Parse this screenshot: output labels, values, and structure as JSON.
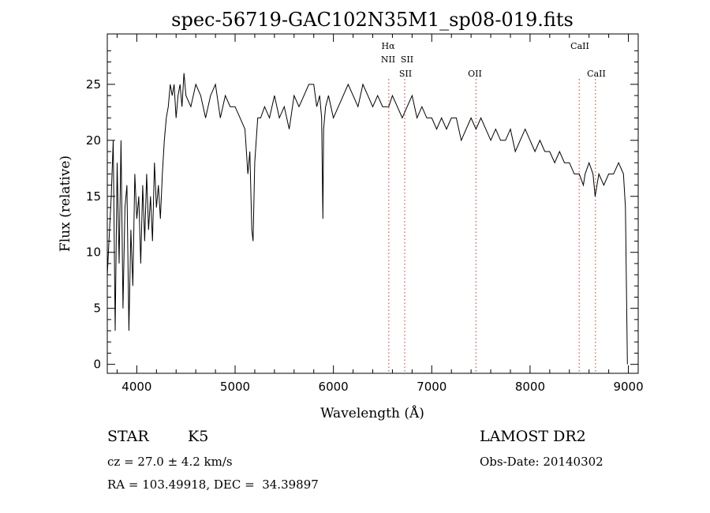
{
  "chart_data": {
    "type": "line",
    "title": "spec-56719-GAC102N35M1_sp08-019.fits",
    "xlabel": "Wavelength (Å)",
    "ylabel": "Flux (relative)",
    "xlim": [
      3700,
      9100
    ],
    "ylim": [
      -0.8,
      29.5
    ],
    "x_ticks": [
      4000,
      5000,
      6000,
      7000,
      8000,
      9000
    ],
    "y_ticks": [
      0,
      5,
      10,
      15,
      20,
      25
    ],
    "grid": false,
    "series": [
      {
        "color": "#000000",
        "x": [
          3700,
          3740,
          3760,
          3780,
          3800,
          3820,
          3840,
          3860,
          3880,
          3900,
          3920,
          3940,
          3960,
          3980,
          4000,
          4020,
          4040,
          4060,
          4080,
          4100,
          4120,
          4140,
          4160,
          4180,
          4200,
          4220,
          4240,
          4260,
          4280,
          4300,
          4320,
          4340,
          4360,
          4380,
          4400,
          4420,
          4440,
          4460,
          4480,
          4500,
          4550,
          4600,
          4650,
          4700,
          4750,
          4800,
          4850,
          4900,
          4950,
          5000,
          5050,
          5100,
          5130,
          5150,
          5170,
          5183,
          5200,
          5230,
          5260,
          5300,
          5350,
          5400,
          5450,
          5500,
          5550,
          5600,
          5650,
          5700,
          5750,
          5800,
          5830,
          5860,
          5880,
          5893,
          5900,
          5920,
          5950,
          6000,
          6050,
          6100,
          6150,
          6200,
          6250,
          6300,
          6350,
          6400,
          6450,
          6500,
          6563,
          6600,
          6650,
          6700,
          6750,
          6800,
          6850,
          6900,
          6950,
          7000,
          7050,
          7100,
          7150,
          7200,
          7250,
          7300,
          7350,
          7400,
          7450,
          7500,
          7550,
          7600,
          7650,
          7700,
          7750,
          7800,
          7850,
          7900,
          7950,
          8000,
          8050,
          8100,
          8150,
          8200,
          8250,
          8300,
          8350,
          8400,
          8450,
          8500,
          8542,
          8560,
          8600,
          8640,
          8662,
          8700,
          8750,
          8800,
          8850,
          8900,
          8950,
          8970,
          8990
        ],
        "y": [
          8,
          15,
          20,
          3,
          18,
          9,
          20,
          5,
          14,
          16,
          3,
          12,
          7,
          17,
          13,
          15,
          9,
          16,
          11,
          17,
          12,
          15,
          11,
          18,
          14,
          16,
          13,
          17,
          20,
          22,
          23,
          25,
          24,
          25,
          22,
          24,
          25,
          23,
          26,
          24,
          23,
          25,
          24,
          22,
          24,
          25,
          22,
          24,
          23,
          23,
          22,
          21,
          17,
          19,
          12,
          11,
          18,
          22,
          22,
          23,
          22,
          24,
          22,
          23,
          21,
          24,
          23,
          24,
          25,
          25,
          23,
          24,
          22,
          13,
          21,
          23,
          24,
          22,
          23,
          24,
          25,
          24,
          23,
          25,
          24,
          23,
          24,
          23,
          23,
          24,
          23,
          22,
          23,
          24,
          22,
          23,
          22,
          22,
          21,
          22,
          21,
          22,
          22,
          20,
          21,
          22,
          21,
          22,
          21,
          20,
          21,
          20,
          20,
          21,
          19,
          20,
          21,
          20,
          19,
          20,
          19,
          19,
          18,
          19,
          18,
          18,
          17,
          17,
          16,
          17,
          18,
          17,
          15,
          17,
          16,
          17,
          17,
          18,
          17,
          14,
          0
        ]
      }
    ],
    "spectral_lines": [
      {
        "label": "Hα",
        "row": 1
      },
      {
        "label": "NII",
        "row": 2
      },
      {
        "label": "SII",
        "row": 2
      },
      {
        "label": "SII",
        "row": 3
      },
      {
        "label": "OII",
        "row": 3
      },
      {
        "label": "CaII",
        "row": 1
      },
      {
        "label": "CaII",
        "row": 3
      }
    ],
    "line_marker_x": [
      6563,
      6725,
      7450,
      8500,
      8665
    ],
    "marker_color": "#e05050"
  },
  "info": {
    "object_class": "STAR",
    "subclass": "K5",
    "redshift": "cz = 27.0 ± 4.2 km/s",
    "coords": "RA = 103.49918, DEC =  34.39897",
    "survey": "LAMOST DR2",
    "obs_date": "Obs-Date: 20140302"
  }
}
